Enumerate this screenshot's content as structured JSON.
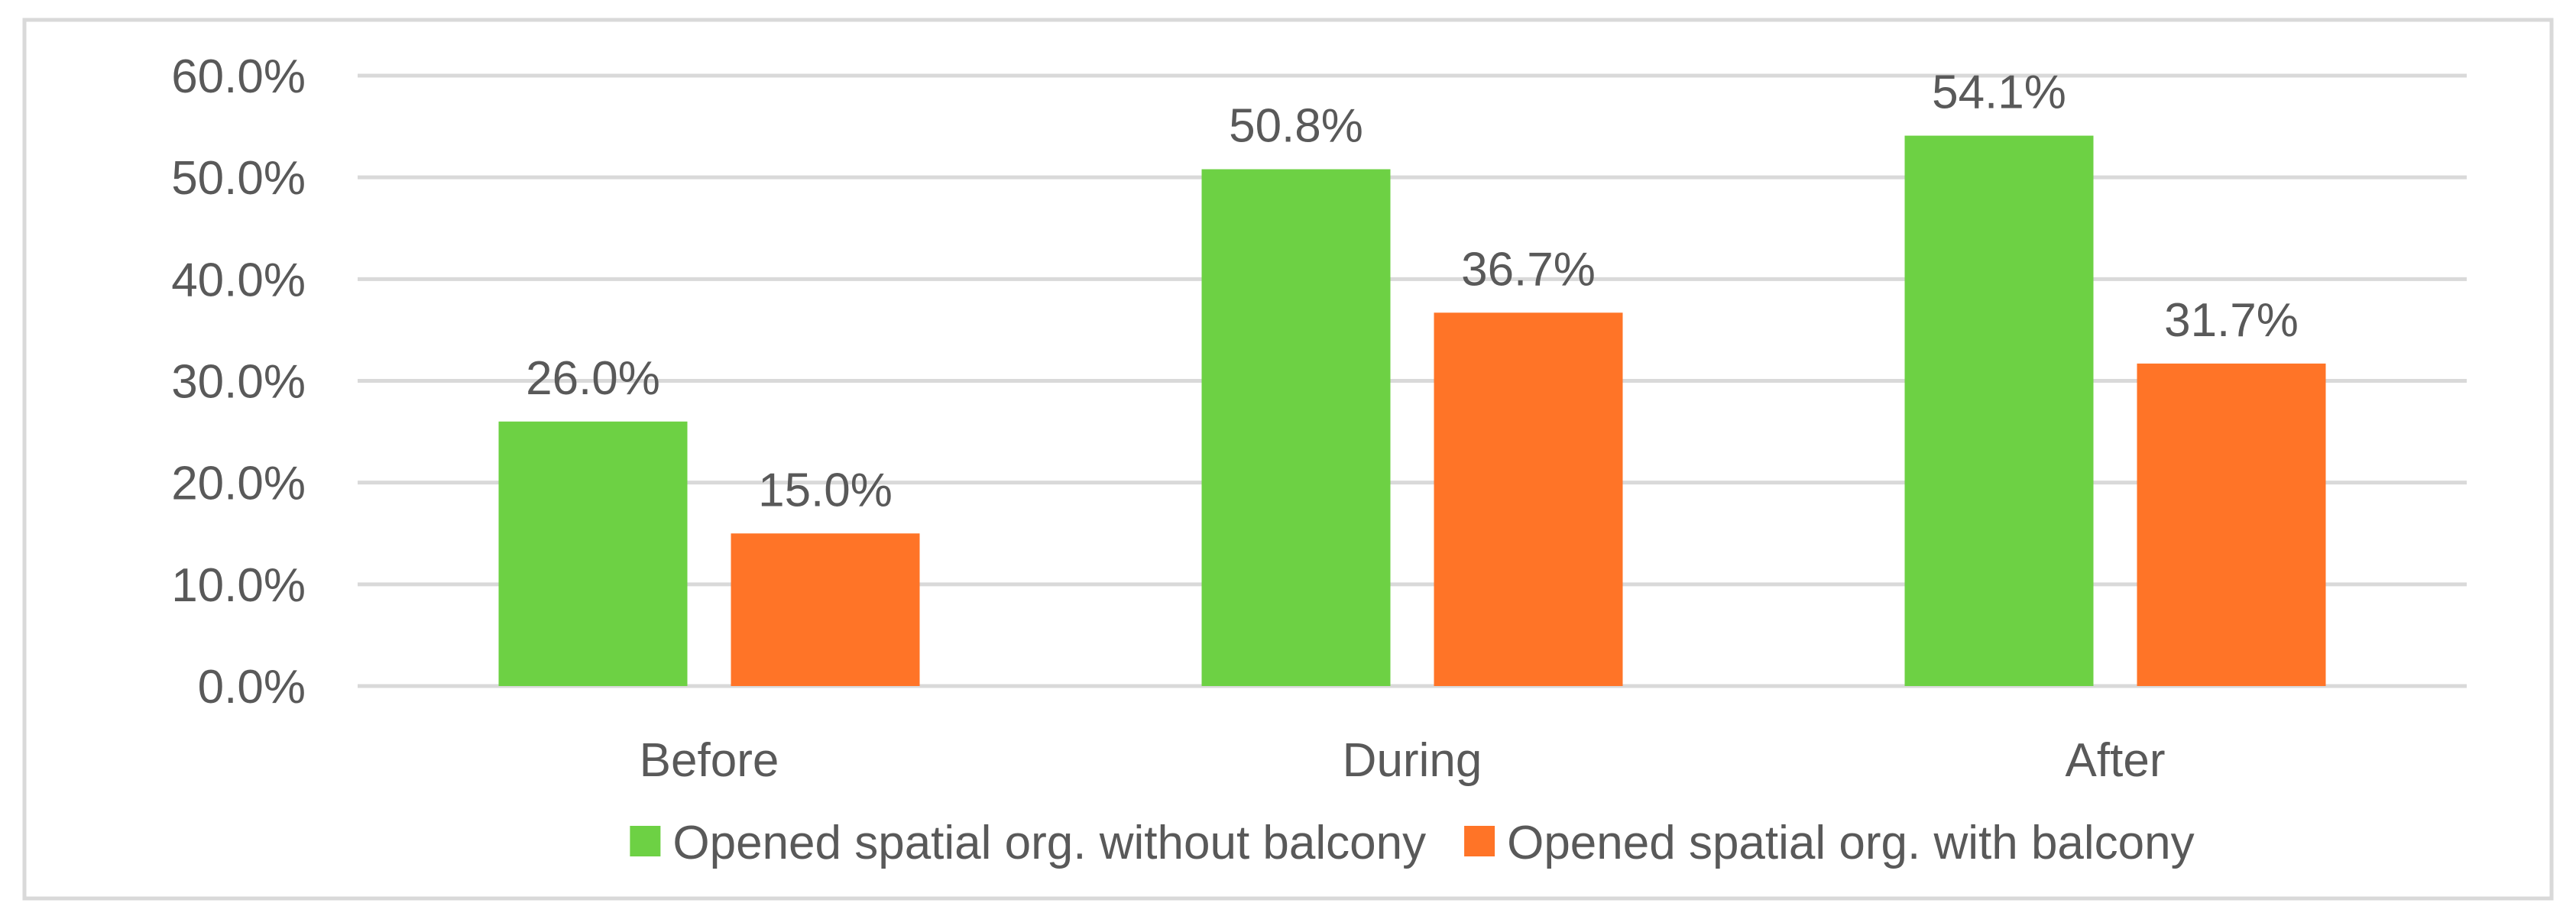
{
  "chart_data": {
    "type": "bar",
    "categories": [
      "Before",
      "During",
      "After"
    ],
    "series": [
      {
        "name": "Opened spatial org. without balcony",
        "values": [
          26.0,
          50.8,
          54.1
        ],
        "color": "#6dd144"
      },
      {
        "name": "Opened spatial org. with balcony",
        "values": [
          15.0,
          36.7,
          31.7
        ],
        "color": "#ff7427"
      }
    ],
    "data_labels": [
      [
        "26.0%",
        "50.8%",
        "54.1%"
      ],
      [
        "15.0%",
        "36.7%",
        "31.7%"
      ]
    ],
    "y_ticks": [
      "0.0%",
      "10.0%",
      "20.0%",
      "30.0%",
      "40.0%",
      "50.0%",
      "60.0%"
    ],
    "ylim": [
      0,
      60
    ],
    "grid": true,
    "legend_position": "bottom",
    "colors": {
      "grid": "#d9d9d9",
      "text": "#595959",
      "frame": "#d9d9d9"
    }
  }
}
